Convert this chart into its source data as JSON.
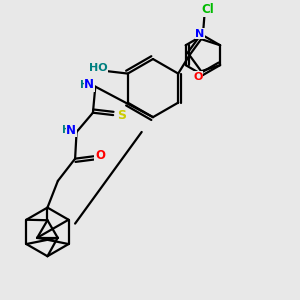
{
  "background_color": "#e8e8e8",
  "atom_colors": {
    "C": "#000000",
    "N": "#0000ff",
    "O": "#ff0000",
    "S": "#cccc00",
    "Cl": "#00bb00",
    "H": "#008080"
  }
}
